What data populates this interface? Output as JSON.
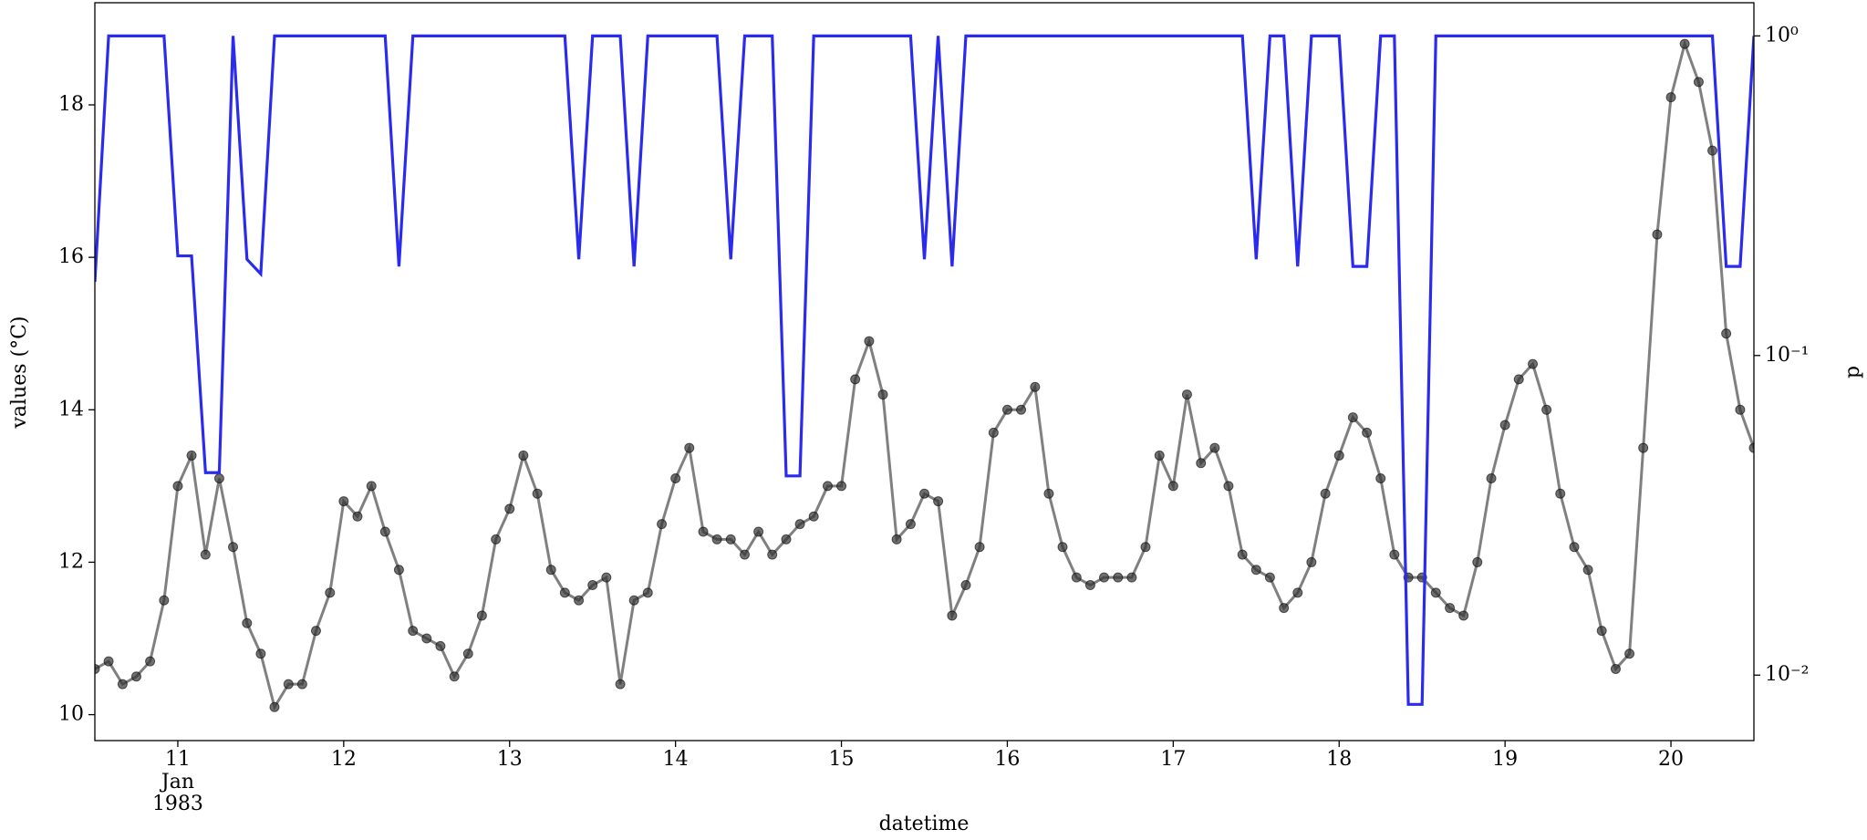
{
  "chart_data": {
    "type": "line",
    "xlabel": "datetime",
    "ylabel": "values (°C)",
    "y2label": "p",
    "x_date_label": [
      "Jan",
      "1983"
    ],
    "x": [
      10.5,
      10.583,
      10.667,
      10.75,
      10.833,
      10.917,
      11,
      11.083,
      11.167,
      11.25,
      11.333,
      11.417,
      11.5,
      11.583,
      11.667,
      11.75,
      11.833,
      11.917,
      12,
      12.083,
      12.167,
      12.25,
      12.333,
      12.417,
      12.5,
      12.583,
      12.667,
      12.75,
      12.833,
      12.917,
      13,
      13.083,
      13.167,
      13.25,
      13.333,
      13.417,
      13.5,
      13.583,
      13.667,
      13.75,
      13.833,
      13.917,
      14,
      14.083,
      14.167,
      14.25,
      14.333,
      14.417,
      14.5,
      14.583,
      14.667,
      14.75,
      14.833,
      14.917,
      15,
      15.083,
      15.167,
      15.25,
      15.333,
      15.417,
      15.5,
      15.583,
      15.667,
      15.75,
      15.833,
      15.917,
      16,
      16.083,
      16.167,
      16.25,
      16.333,
      16.417,
      16.5,
      16.583,
      16.667,
      16.75,
      16.833,
      16.917,
      17,
      17.083,
      17.167,
      17.25,
      17.333,
      17.417,
      17.5,
      17.583,
      17.667,
      17.75,
      17.833,
      17.917,
      18,
      18.083,
      18.167,
      18.25,
      18.333,
      18.417,
      18.5,
      18.583,
      18.667,
      18.75,
      18.833,
      18.917,
      19,
      19.083,
      19.167,
      19.25,
      19.333,
      19.417,
      19.5,
      19.583,
      19.667,
      19.75,
      19.833,
      19.917,
      20,
      20.083,
      20.167,
      20.25,
      20.333,
      20.417,
      20.5
    ],
    "series": [
      {
        "color": "#555555",
        "marker": true,
        "values": [
          10.6,
          10.7,
          10.4,
          10.5,
          10.7,
          11.5,
          13.0,
          13.4,
          12.1,
          13.1,
          12.2,
          11.2,
          10.8,
          10.1,
          10.4,
          10.4,
          11.1,
          11.6,
          12.8,
          12.6,
          13.0,
          12.4,
          11.9,
          11.1,
          11.0,
          10.9,
          10.5,
          10.8,
          11.3,
          12.3,
          12.7,
          13.4,
          12.9,
          11.9,
          11.6,
          11.5,
          11.7,
          11.8,
          10.4,
          11.5,
          11.6,
          12.5,
          13.1,
          13.5,
          12.4,
          12.3,
          12.3,
          12.1,
          12.4,
          12.1,
          12.3,
          12.5,
          12.6,
          13.0,
          13.0,
          14.4,
          14.9,
          14.2,
          12.3,
          12.5,
          12.9,
          12.8,
          11.3,
          11.7,
          12.2,
          13.7,
          14.0,
          14.0,
          14.3,
          12.9,
          12.2,
          11.8,
          11.7,
          11.8,
          11.8,
          11.8,
          12.2,
          13.4,
          13.0,
          14.2,
          13.3,
          13.5,
          13.0,
          12.1,
          11.9,
          11.8,
          11.4,
          11.6,
          12.0,
          12.9,
          13.4,
          13.9,
          13.7,
          13.1,
          12.1,
          11.8,
          11.8,
          11.6,
          11.4,
          11.3,
          12.0,
          13.1,
          13.8,
          14.4,
          14.6,
          14.0,
          12.9,
          12.2,
          11.9,
          11.1,
          10.6,
          10.8,
          13.5,
          16.3,
          18.1,
          18.8,
          18.3,
          17.4,
          15.0,
          14.0,
          13.5
        ]
      },
      {
        "color": "#2b2bf0",
        "axis": "y2",
        "marker": false,
        "values": [
          0.17,
          1,
          1,
          1,
          1,
          1,
          0.205,
          0.205,
          0.043,
          0.043,
          1,
          0.2,
          0.18,
          1,
          1,
          1,
          1,
          1,
          1,
          1,
          1,
          1,
          0.19,
          1,
          1,
          1,
          1,
          1,
          1,
          1,
          1,
          1,
          1,
          1,
          1,
          0.2,
          1,
          1,
          1,
          0.19,
          1,
          1,
          1,
          1,
          1,
          1,
          0.2,
          1,
          1,
          1,
          0.042,
          0.042,
          1,
          1,
          1,
          1,
          1,
          1,
          1,
          1,
          0.2,
          1,
          0.19,
          1,
          1,
          1,
          1,
          1,
          1,
          1,
          1,
          1,
          1,
          1,
          1,
          1,
          1,
          1,
          1,
          1,
          1,
          1,
          1,
          1,
          0.2,
          1,
          1,
          0.19,
          1,
          1,
          1,
          0.19,
          0.19,
          1,
          1,
          0.0081,
          0.0081,
          1,
          1,
          1,
          1,
          1,
          1,
          1,
          1,
          1,
          1,
          1,
          1,
          1,
          1,
          1,
          1,
          1,
          1,
          1,
          1,
          1,
          0.19,
          0.19,
          1
        ]
      }
    ],
    "xlim": [
      10.5,
      20.5
    ],
    "xticks": [
      11,
      12,
      13,
      14,
      15,
      16,
      17,
      18,
      19,
      20
    ],
    "ylim": [
      9.66,
      19.34
    ],
    "yticks": [
      10,
      12,
      14,
      16,
      18
    ],
    "y2lim": [
      0.00624,
      1.27
    ],
    "y2scale": "log",
    "y2ticks": [
      {
        "value": 1,
        "label": "10⁰"
      },
      {
        "value": 0.1,
        "label": "10⁻¹"
      },
      {
        "value": 0.01,
        "label": "10⁻²"
      }
    ],
    "grid": false
  }
}
